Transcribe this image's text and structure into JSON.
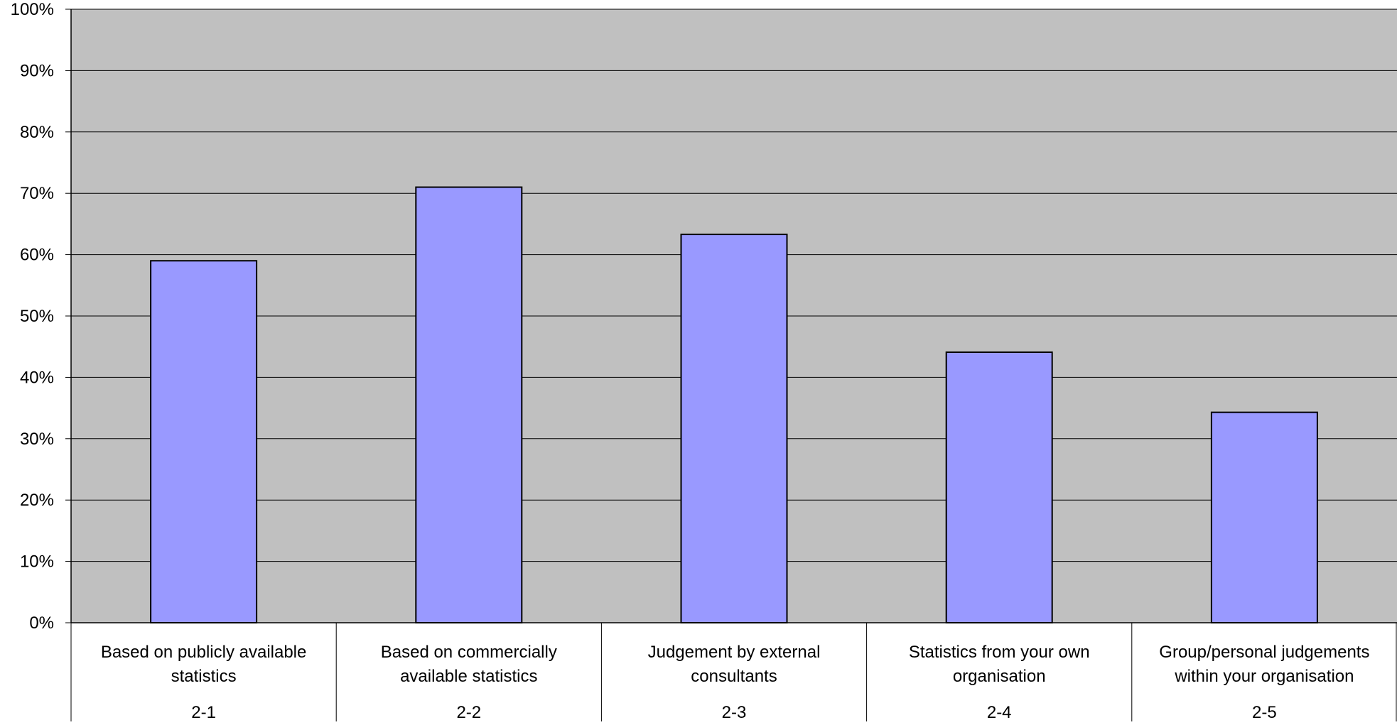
{
  "chart_data": {
    "type": "bar",
    "categories": [
      "Based on publicly available statistics",
      "Based on commercially available statistics",
      "Judgement by external consultants",
      "Statistics from your own organisation",
      "Group/personal judgements within your organisation"
    ],
    "category_label_lines": [
      [
        "Based on publicly available",
        "statistics"
      ],
      [
        "Based on commercially",
        "available statistics"
      ],
      [
        "Judgement by external",
        "consultants"
      ],
      [
        "Statistics from your own",
        "organisation"
      ],
      [
        "Group/personal judgements",
        "within your organisation"
      ]
    ],
    "category_codes": [
      "2-1",
      "2-2",
      "2-3",
      "2-4",
      "2-5"
    ],
    "values": [
      59,
      71,
      63.3,
      44.1,
      34.3
    ],
    "ylim": [
      0,
      100
    ],
    "y_ticks": [
      "0%",
      "10%",
      "20%",
      "30%",
      "40%",
      "50%",
      "60%",
      "70%",
      "80%",
      "90%",
      "100%"
    ],
    "grid": true,
    "legend": "none",
    "title": "",
    "xlabel": "",
    "ylabel": "",
    "colors": {
      "plot_background": "#c0c0c0",
      "bar_fill": "#9999ff",
      "bar_stroke": "#000000",
      "gridline": "#000000"
    }
  }
}
